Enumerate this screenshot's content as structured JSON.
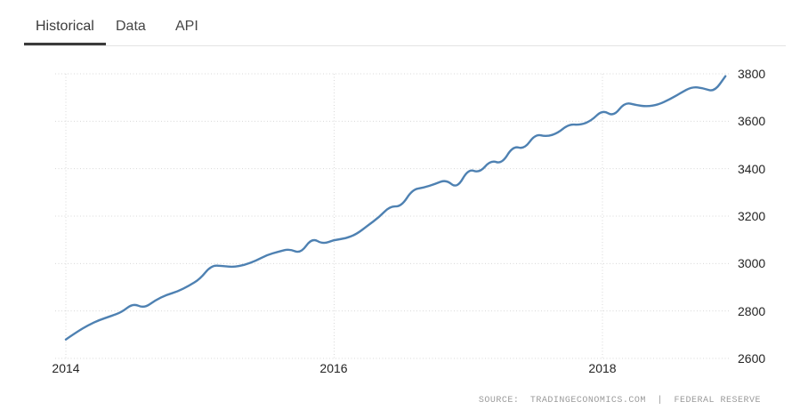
{
  "tabs": {
    "items": [
      {
        "label": "Historical",
        "active": true
      },
      {
        "label": "Data",
        "active": false
      },
      {
        "label": "API",
        "active": false
      }
    ]
  },
  "chart_data": {
    "type": "line",
    "title": "",
    "xlabel": "",
    "ylabel": "",
    "x_ticks": [
      "2014",
      "2016",
      "2018"
    ],
    "y_ticks": [
      "3800",
      "3600",
      "3400",
      "3200",
      "3000",
      "2800",
      "2600"
    ],
    "ylim": [
      2600,
      3800
    ],
    "xlim_years": [
      2014.0,
      2019.0
    ],
    "grid": true,
    "legend": false,
    "line_color": "#4e81b2",
    "grid_color": "#d8d8d8",
    "series": [
      {
        "name": "value",
        "frequency": "monthly",
        "start": "2014-01",
        "end": "2018-12",
        "values": [
          2680,
          2712,
          2740,
          2762,
          2778,
          2795,
          2832,
          2812,
          2845,
          2868,
          2882,
          2906,
          2935,
          2992,
          2990,
          2985,
          2994,
          3012,
          3036,
          3050,
          3062,
          3042,
          3108,
          3082,
          3100,
          3105,
          3124,
          3160,
          3195,
          3242,
          3240,
          3312,
          3320,
          3335,
          3354,
          3316,
          3400,
          3382,
          3436,
          3420,
          3496,
          3482,
          3546,
          3535,
          3550,
          3588,
          3584,
          3602,
          3648,
          3620,
          3680,
          3668,
          3662,
          3670,
          3692,
          3719,
          3745,
          3740,
          3724,
          3790
        ]
      }
    ]
  },
  "footer": {
    "source_label": "SOURCE:",
    "source_provider": "TRADINGECONOMICS.COM",
    "source_separator": "|",
    "source_attribution": "FEDERAL RESERVE"
  }
}
